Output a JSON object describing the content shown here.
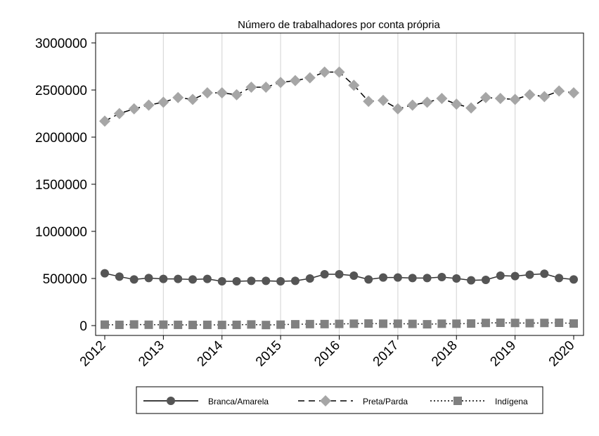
{
  "chart_data": {
    "type": "line",
    "title": "Número de trabalhadores por conta própria",
    "xlabel": "",
    "ylabel": "",
    "xlim": [
      2012,
      2020
    ],
    "ylim": [
      0,
      3000000
    ],
    "x_ticks": [
      "2012",
      "2013",
      "2014",
      "2015",
      "2016",
      "2017",
      "2018",
      "2019",
      "2020"
    ],
    "y_ticks": [
      "0",
      "500000",
      "1000000",
      "1500000",
      "2000000",
      "2500000",
      "3000000"
    ],
    "x": [
      2012.0,
      2012.25,
      2012.5,
      2012.75,
      2013.0,
      2013.25,
      2013.5,
      2013.75,
      2014.0,
      2014.25,
      2014.5,
      2014.75,
      2015.0,
      2015.25,
      2015.5,
      2015.75,
      2016.0,
      2016.25,
      2016.5,
      2016.75,
      2017.0,
      2017.25,
      2017.5,
      2017.75,
      2018.0,
      2018.25,
      2018.5,
      2018.75,
      2019.0,
      2019.25,
      2019.5,
      2019.75,
      2020.0
    ],
    "grid": "vertical",
    "legend_position": "bottom",
    "series": [
      {
        "name": "Branca/Amarela",
        "line": "solid",
        "marker": "circle",
        "color": "#555555",
        "values": [
          555000,
          520000,
          490000,
          505000,
          495000,
          495000,
          490000,
          495000,
          470000,
          470000,
          475000,
          475000,
          470000,
          475000,
          500000,
          545000,
          545000,
          530000,
          490000,
          510000,
          510000,
          505000,
          505000,
          515000,
          500000,
          480000,
          485000,
          530000,
          525000,
          540000,
          550000,
          505000,
          490000
        ]
      },
      {
        "name": "Preta/Parda",
        "line": "dashed",
        "marker": "diamond",
        "color": "#a6a6a6",
        "values": [
          2170000,
          2250000,
          2300000,
          2340000,
          2370000,
          2420000,
          2400000,
          2470000,
          2470000,
          2450000,
          2530000,
          2530000,
          2580000,
          2600000,
          2630000,
          2690000,
          2690000,
          2550000,
          2380000,
          2390000,
          2300000,
          2340000,
          2370000,
          2410000,
          2350000,
          2310000,
          2420000,
          2410000,
          2400000,
          2450000,
          2430000,
          2490000,
          2470000
        ]
      },
      {
        "name": "Indígena",
        "line": "dotted",
        "marker": "square",
        "color": "#808080",
        "values": [
          10000,
          8000,
          12000,
          9000,
          10000,
          8000,
          7000,
          8000,
          7000,
          8000,
          12000,
          6000,
          10000,
          14000,
          16000,
          16000,
          18000,
          20000,
          22000,
          20000,
          20000,
          18000,
          14000,
          20000,
          20000,
          22000,
          28000,
          30000,
          28000,
          26000,
          28000,
          30000,
          22000
        ]
      }
    ]
  }
}
